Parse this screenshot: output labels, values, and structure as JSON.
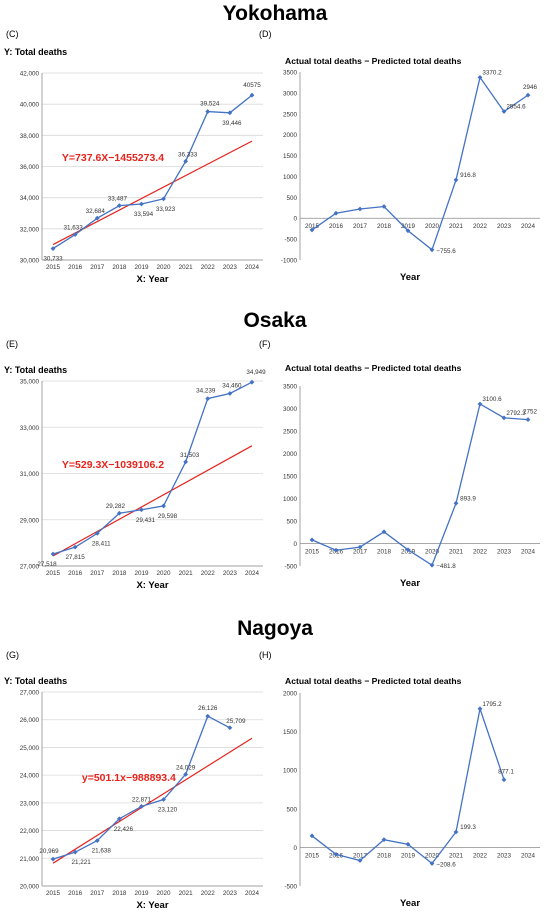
{
  "cities": [
    "Yokohama",
    "Osaka",
    "Nagoya"
  ],
  "colors": {
    "series": "#4472C4",
    "trend": "#E8231C",
    "grid": "#d9d9d9",
    "axis": "#8c8c8c"
  },
  "chart_data": [
    {
      "panel": "(C)",
      "city": "Yokohama",
      "type": "line",
      "ylabel": "Y: Total deaths",
      "xlabel": "X: Year",
      "ylim": [
        30000,
        42000
      ],
      "yticks": [
        "30,000",
        "32,000",
        "34,000",
        "36,000",
        "38,000",
        "40,000",
        "42,000"
      ],
      "x": [
        2015,
        2016,
        2017,
        2018,
        2019,
        2020,
        2021,
        2022,
        2023,
        2024
      ],
      "values": [
        30733,
        31633,
        32684,
        33487,
        33594,
        33923,
        36333,
        39524,
        39446,
        40575
      ],
      "labels": [
        "30,733",
        "31,633",
        "32,684",
        "33,487",
        "33,594",
        "33,923",
        "36,333",
        "39,524",
        "39,446",
        "40575"
      ],
      "trend": {
        "equation": "Y=737.6X−1455273.4",
        "slope": 737.6,
        "intercept": -1455273.4
      }
    },
    {
      "panel": "(D)",
      "city": "Yokohama",
      "type": "line",
      "title": "Actual total deaths − Predicted total deaths",
      "xlabel": "Year",
      "ylim": [
        -1000,
        3500
      ],
      "yticks": [
        "-1000",
        "-500",
        "0",
        "500",
        "1000",
        "1500",
        "2000",
        "2500",
        "3000",
        "3500"
      ],
      "x": [
        2015,
        2016,
        2017,
        2018,
        2019,
        2020,
        2021,
        2022,
        2023,
        2024
      ],
      "values": [
        -280,
        120,
        220,
        280,
        -300,
        -755.6,
        916.8,
        3370.2,
        2554.6,
        2946
      ],
      "labels": [
        "",
        "",
        "",
        "",
        "",
        "−755.6",
        "916.8",
        "3370.2",
        "2554.6",
        "2946"
      ]
    },
    {
      "panel": "(E)",
      "city": "Osaka",
      "type": "line",
      "ylabel": "Y: Total deaths",
      "xlabel": "X: Year",
      "ylim": [
        27000,
        35000
      ],
      "yticks": [
        "27,000",
        "29,000",
        "31,000",
        "33,000",
        "35,000"
      ],
      "x": [
        2015,
        2016,
        2017,
        2018,
        2019,
        2020,
        2021,
        2022,
        2023,
        2024
      ],
      "values": [
        27518,
        27815,
        28411,
        29282,
        29431,
        29598,
        31503,
        34239,
        34460,
        34949
      ],
      "labels": [
        "27,518",
        "27,815",
        "28,411",
        "29,282",
        "29,431",
        "29,598",
        "31,503",
        "34,239",
        "34,460",
        "34,949"
      ],
      "trend": {
        "equation": "Y=529.3X−1039106.2",
        "slope": 529.3,
        "intercept": -1039106.2
      }
    },
    {
      "panel": "(F)",
      "city": "Osaka",
      "type": "line",
      "title": "Actual total deaths − Predicted total deaths",
      "xlabel": "Year",
      "ylim": [
        -500,
        3500
      ],
      "yticks": [
        "-500",
        "0",
        "500",
        "1000",
        "1500",
        "2000",
        "2500",
        "3000",
        "3500"
      ],
      "x": [
        2015,
        2016,
        2017,
        2018,
        2019,
        2020,
        2021,
        2022,
        2023,
        2024
      ],
      "values": [
        80,
        -150,
        -80,
        260,
        -140,
        -481.8,
        893.9,
        3100.6,
        2792.3,
        2752
      ],
      "labels": [
        "",
        "",
        "",
        "",
        "",
        "−481.8",
        "893.9",
        "3100.6",
        "2792.3",
        "2752"
      ]
    },
    {
      "panel": "(G)",
      "city": "Nagoya",
      "type": "line",
      "ylabel": "Y: Total deaths",
      "xlabel": "X: Year",
      "ylim": [
        20000,
        27000
      ],
      "yticks": [
        "20,000",
        "21,000",
        "22,000",
        "23,000",
        "24,000",
        "25,000",
        "26,000",
        "27,000"
      ],
      "x": [
        2015,
        2016,
        2017,
        2018,
        2019,
        2020,
        2021,
        2022,
        2023,
        2024
      ],
      "values": [
        20969,
        21221,
        21638,
        22426,
        22871,
        23120,
        24029,
        26126,
        25709,
        null
      ],
      "labels": [
        "20,969",
        "21,221",
        "21,638",
        "22,426",
        "22,871",
        "23,120",
        "24,029",
        "26,126",
        "25,709",
        ""
      ],
      "trend": {
        "equation": "y=501.1x−988893.4",
        "slope": 501.1,
        "intercept": -988893.4
      }
    },
    {
      "panel": "(H)",
      "city": "Nagoya",
      "type": "line",
      "title": "Actual total deaths − Predicted total deaths",
      "xlabel": "Year",
      "ylim": [
        -500,
        2000
      ],
      "yticks": [
        "-500",
        "0",
        "500",
        "1000",
        "1500",
        "2000"
      ],
      "x": [
        2015,
        2016,
        2017,
        2018,
        2019,
        2020,
        2021,
        2022,
        2023,
        2024
      ],
      "values": [
        150,
        -90,
        -170,
        100,
        40,
        -208.6,
        199.3,
        1795.2,
        877.1,
        null
      ],
      "labels": [
        "",
        "",
        "",
        "",
        "",
        "−208.6",
        "199.3",
        "1795.2",
        "877.1",
        ""
      ]
    }
  ]
}
